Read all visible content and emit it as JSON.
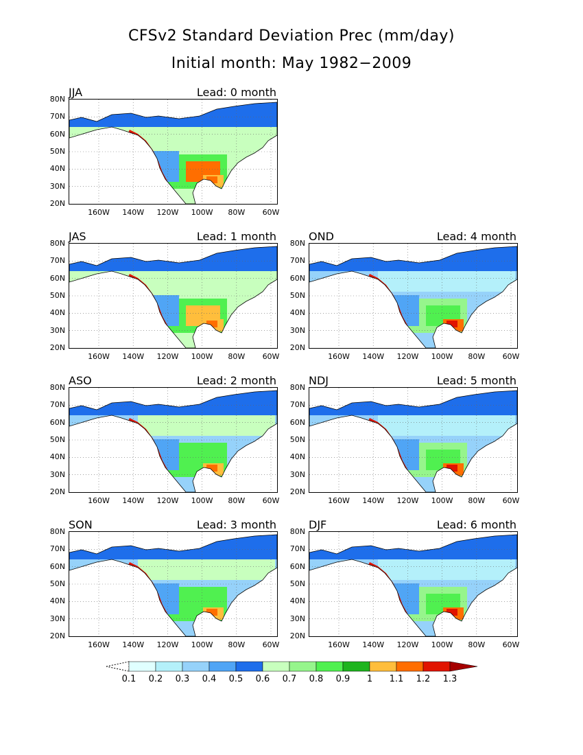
{
  "header": {
    "title": "CFSv2 Standard Deviation Prec (mm/day)",
    "subtitle": "Initial month: May 1982−2009"
  },
  "panels": [
    {
      "season": "JJA",
      "lead": "Lead: 0 month"
    },
    {
      "season": "JAS",
      "lead": "Lead: 1 month"
    },
    {
      "season": "ASO",
      "lead": "Lead: 2 month"
    },
    {
      "season": "SON",
      "lead": "Lead: 3 month"
    },
    {
      "season": "OND",
      "lead": "Lead: 4 month"
    },
    {
      "season": "NDJ",
      "lead": "Lead: 5 month"
    },
    {
      "season": "DJF",
      "lead": "Lead: 6 month"
    }
  ],
  "axes": {
    "y_ticks": [
      "80N",
      "70N",
      "60N",
      "50N",
      "40N",
      "30N",
      "20N"
    ],
    "x_ticks": [
      "160W",
      "140W",
      "120W",
      "100W",
      "80W",
      "60W"
    ]
  },
  "colorbar": {
    "labels": [
      "0.1",
      "0.2",
      "0.3",
      "0.4",
      "0.5",
      "0.6",
      "0.7",
      "0.8",
      "0.9",
      "1",
      "1.1",
      "1.2",
      "1.3"
    ],
    "colors": [
      "#e0ffff",
      "#b4f0fa",
      "#96d2fa",
      "#50a5f5",
      "#1e6eeb",
      "#c8ffbe",
      "#96f58c",
      "#50f050",
      "#1eb41e",
      "#ffbe3c",
      "#ff6e00",
      "#e11400",
      "#a50000"
    ]
  }
}
